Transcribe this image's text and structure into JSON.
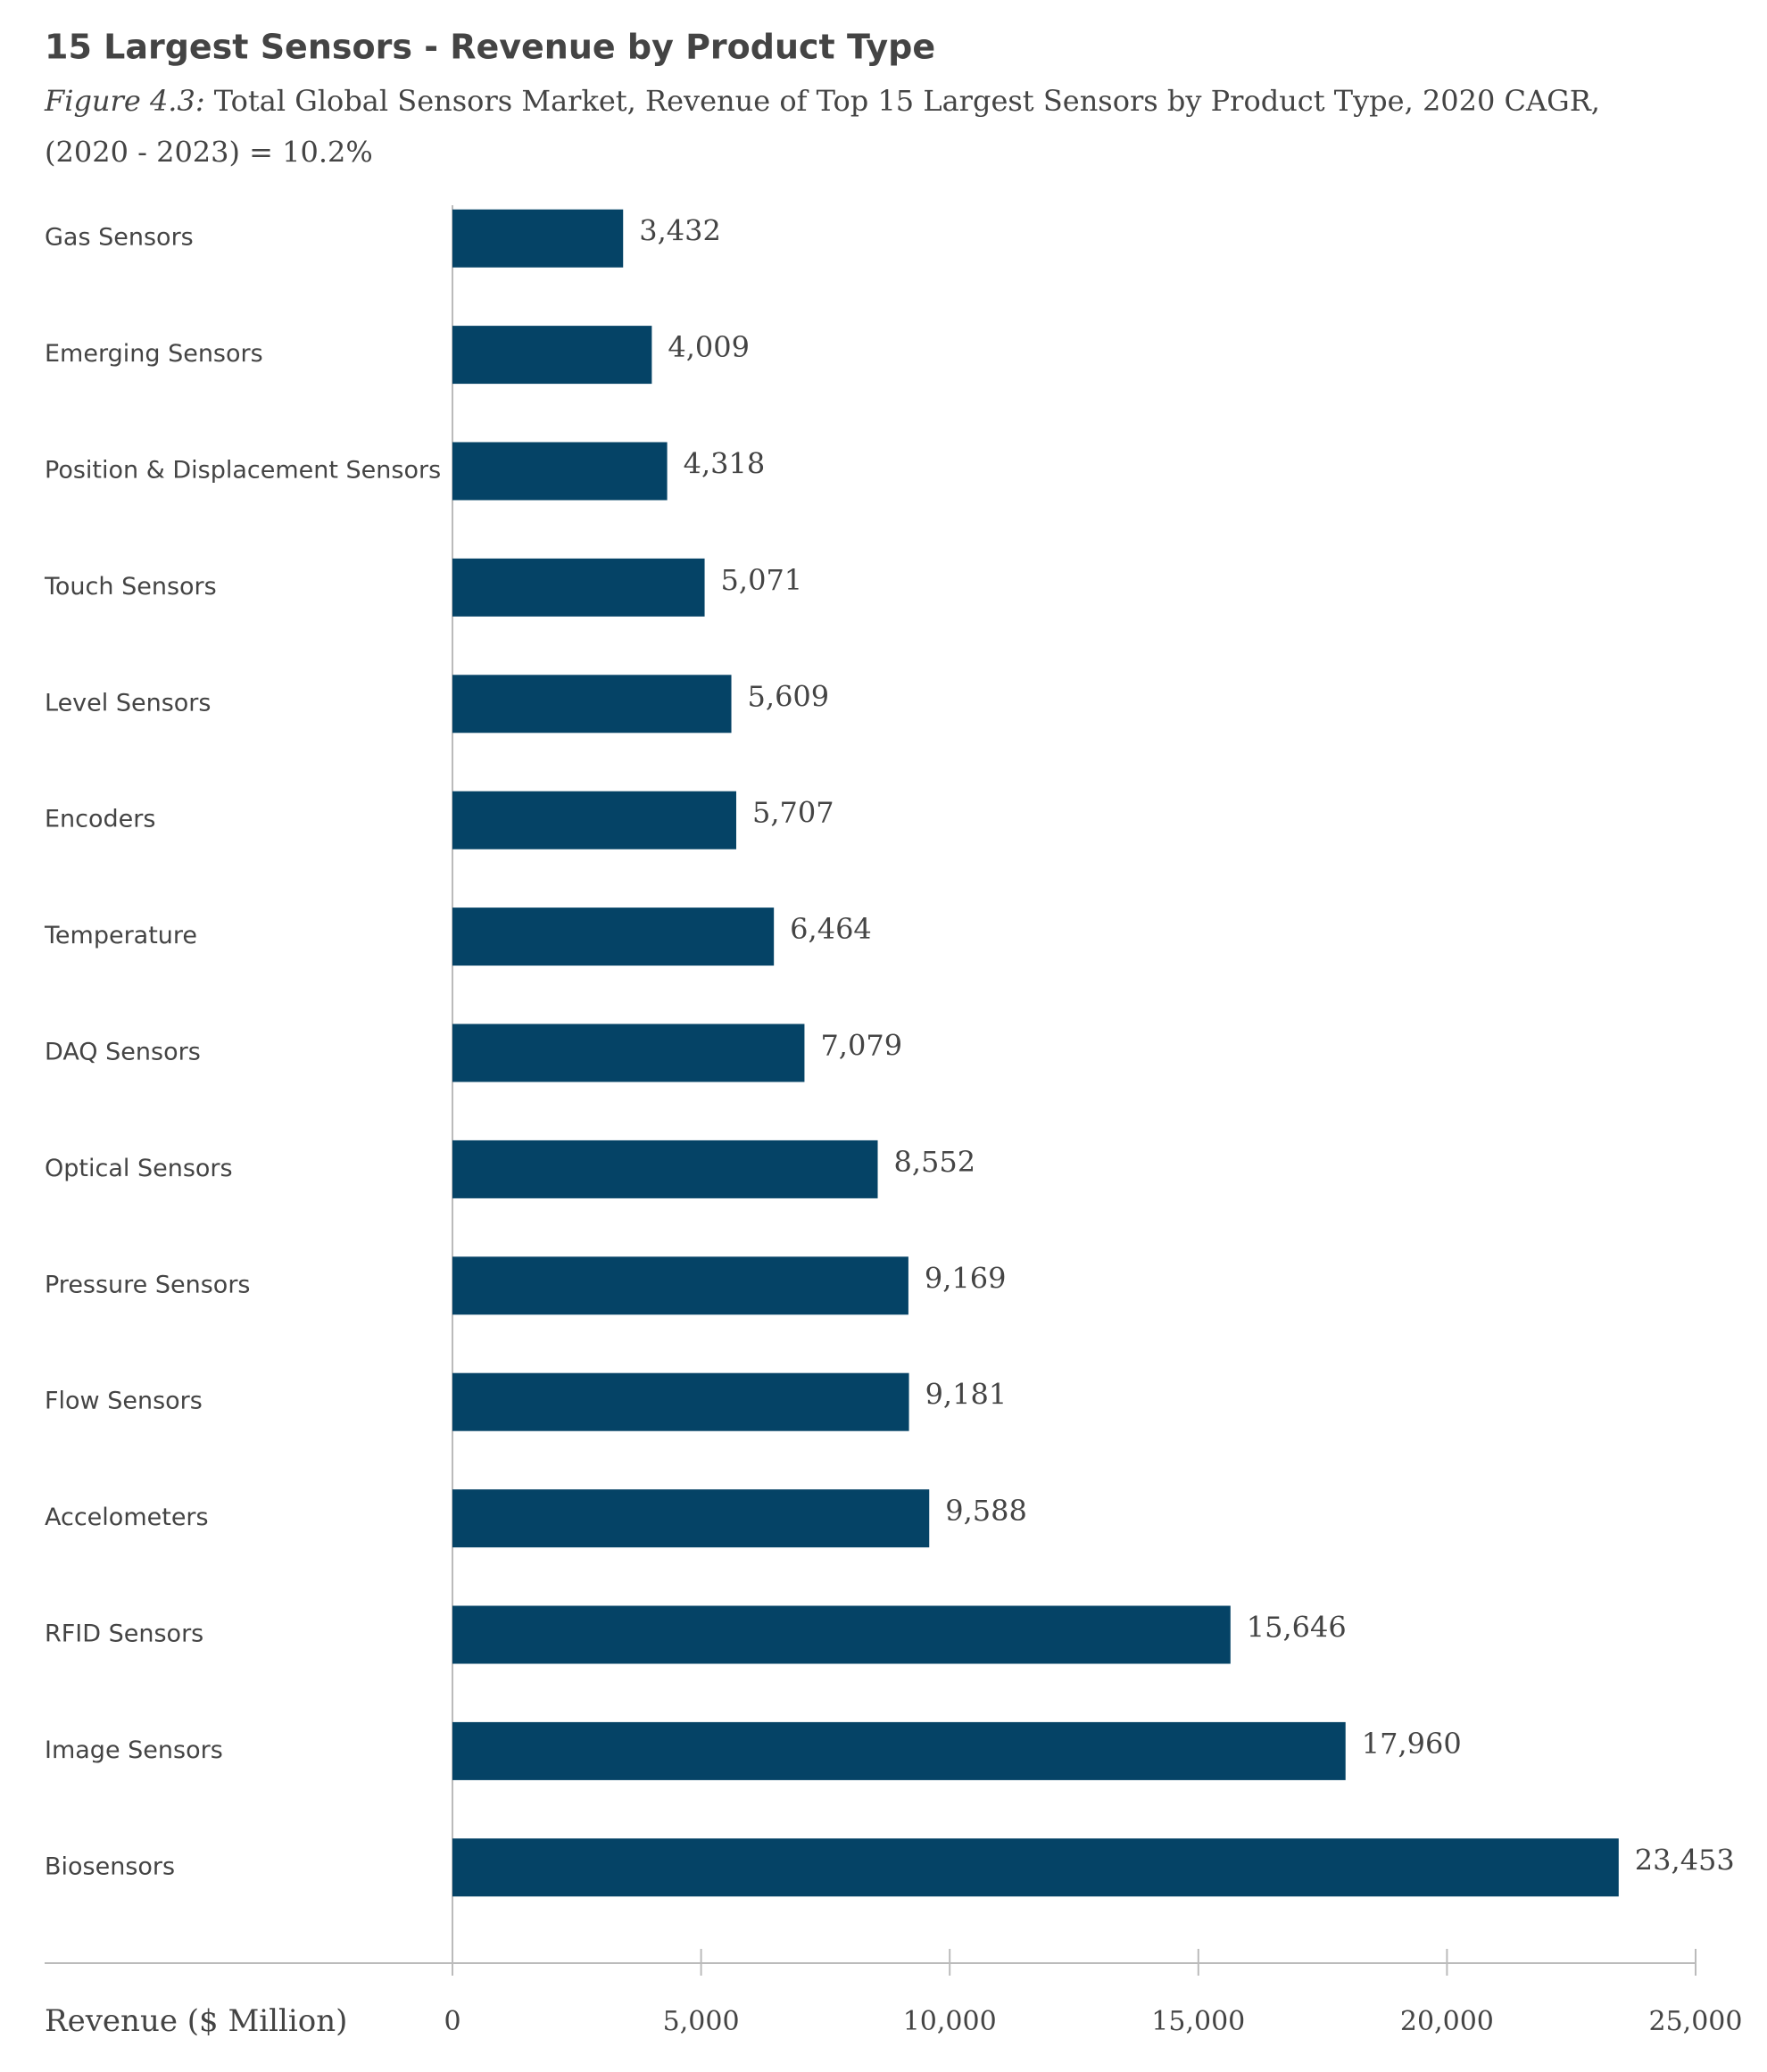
{
  "chart_data": {
    "type": "bar",
    "orientation": "horizontal",
    "title": "15 Largest Sensors - Revenue by Product Type",
    "figure_label": "Figure 4.3:",
    "subtitle": [
      "Total Global Sensors Market, Revenue of Top 15 Largest Sensors by Product Type, 2020  CAGR,",
      "(2020 - 2023) = 10.2%"
    ],
    "x_label": "Revenue ($ Million)",
    "categories": [
      "Gas Sensors",
      "Emerging Sensors",
      "Position & Displacement Sensors",
      "Touch Sensors",
      "Level Sensors",
      "Encoders",
      "Temperature",
      "DAQ Sensors",
      "Optical Sensors",
      "Pressure Sensors",
      "Flow Sensors",
      "Accelometers",
      "RFID Sensors",
      "Image Sensors",
      "Biosensors"
    ],
    "values": [
      3432,
      4009,
      4318,
      5071,
      5609,
      5707,
      6464,
      7079,
      8552,
      9169,
      9181,
      9588,
      15646,
      17960,
      23453
    ],
    "value_labels": [
      "3,432",
      "4,009",
      "4,318",
      "5,071",
      "5,609",
      "5,707",
      "6,464",
      "7,079",
      "8,552",
      "9,169",
      "9,181",
      "9,588",
      "15,646",
      "17,960",
      "23,453"
    ],
    "color": "#054366",
    "xlim": [
      0,
      25000
    ],
    "xticks": [
      0,
      {
        "value": 5000,
        "label": "5,000"
      },
      {
        "value": 10000,
        "label": "10,000"
      },
      {
        "value": 15000,
        "label": "15,000"
      },
      {
        "value": 20000,
        "label": "20,000"
      },
      {
        "value": 25000,
        "label": "25,000"
      }
    ],
    "grid": false
  }
}
